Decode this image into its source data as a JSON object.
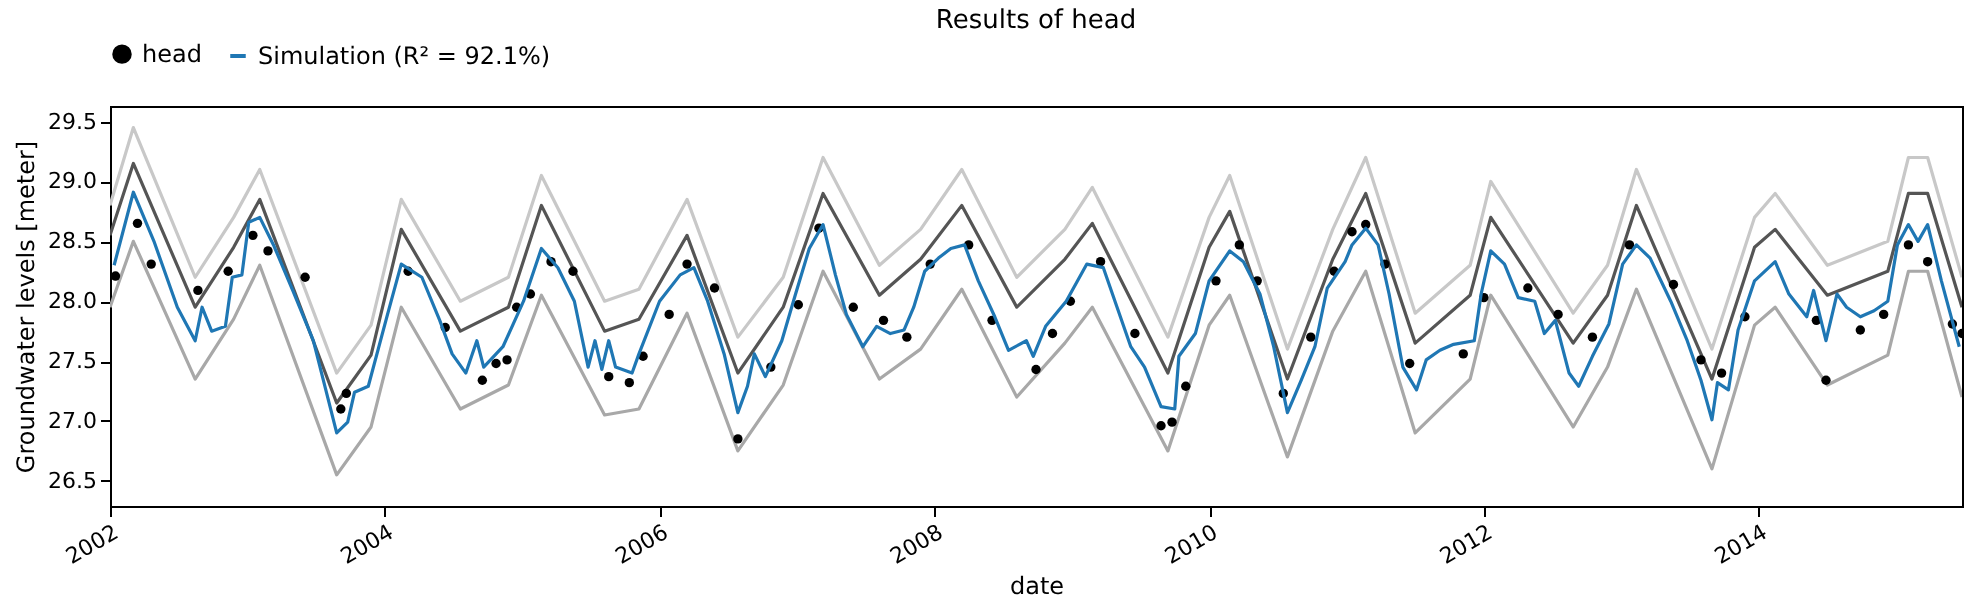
{
  "chart_data": {
    "type": "line",
    "title": "Results of head",
    "xlabel": "date",
    "ylabel": "Groundwater levels [meter]",
    "xlim": [
      2002,
      2015.48
    ],
    "xticks": [
      2002,
      2004,
      2006,
      2008,
      2010,
      2012,
      2014
    ],
    "ylim": [
      26.29,
      29.63
    ],
    "yticks": [
      26.5,
      {
        "value": 27,
        "label": "27.0"
      },
      27.5,
      {
        "value": 28,
        "label": "28.0"
      },
      28.5,
      {
        "value": 29,
        "label": "29.0"
      },
      29.5
    ],
    "legend": "top",
    "series": [
      {
        "color": "#c8c8c8",
        "x": [
          2002.0,
          2002.17,
          2002.62,
          2002.9,
          2003.09,
          2003.65,
          2003.9,
          2004.12,
          2004.55,
          2004.9,
          2005.14,
          2005.6,
          2005.85,
          2006.2,
          2006.57,
          2006.9,
          2007.19,
          2007.6,
          2007.9,
          2008.2,
          2008.6,
          2008.95,
          2009.15,
          2009.7,
          2010.0,
          2010.15,
          2010.57,
          2010.9,
          2011.14,
          2011.5,
          2011.9,
          2012.05,
          2012.65,
          2012.9,
          2013.11,
          2013.66,
          2013.97,
          2014.12,
          2014.5,
          2014.94,
          2015.09,
          2015.23,
          2015.48
        ],
        "values": [
          28.8,
          29.45,
          28.2,
          28.7,
          29.1,
          27.4,
          27.8,
          28.85,
          28.0,
          28.2,
          29.05,
          28.0,
          28.1,
          28.85,
          27.7,
          28.2,
          29.2,
          28.3,
          28.6,
          29.1,
          28.2,
          28.6,
          28.95,
          27.7,
          28.7,
          29.05,
          27.6,
          28.6,
          29.2,
          27.9,
          28.3,
          29.0,
          27.9,
          28.3,
          29.1,
          27.6,
          28.7,
          28.9,
          28.3,
          28.5,
          29.2,
          29.2,
          28.2
        ]
      },
      {
        "color": "#555555",
        "x": [
          2002.0,
          2002.17,
          2002.62,
          2002.9,
          2003.09,
          2003.65,
          2003.9,
          2004.12,
          2004.55,
          2004.9,
          2005.14,
          2005.6,
          2005.85,
          2006.2,
          2006.57,
          2006.9,
          2007.19,
          2007.6,
          2007.9,
          2008.2,
          2008.6,
          2008.95,
          2009.15,
          2009.7,
          2010.0,
          2010.15,
          2010.57,
          2010.9,
          2011.14,
          2011.5,
          2011.9,
          2012.05,
          2012.65,
          2012.9,
          2013.11,
          2013.66,
          2013.97,
          2014.12,
          2014.5,
          2014.94,
          2015.09,
          2015.23,
          2015.48
        ],
        "values": [
          28.55,
          29.15,
          27.95,
          28.45,
          28.85,
          27.15,
          27.55,
          28.6,
          27.75,
          27.95,
          28.8,
          27.75,
          27.85,
          28.55,
          27.4,
          27.95,
          28.9,
          28.05,
          28.35,
          28.8,
          27.95,
          28.35,
          28.65,
          27.4,
          28.45,
          28.75,
          27.35,
          28.35,
          28.9,
          27.65,
          28.05,
          28.7,
          27.65,
          28.05,
          28.8,
          27.35,
          28.45,
          28.6,
          28.05,
          28.25,
          28.9,
          28.9,
          27.95
        ]
      },
      {
        "color": "#a8a8a8",
        "x": [
          2002.0,
          2002.17,
          2002.62,
          2002.9,
          2003.09,
          2003.65,
          2003.9,
          2004.12,
          2004.55,
          2004.9,
          2005.14,
          2005.6,
          2005.85,
          2006.2,
          2006.57,
          2006.9,
          2007.19,
          2007.6,
          2007.9,
          2008.2,
          2008.6,
          2008.95,
          2009.15,
          2009.7,
          2010.0,
          2010.15,
          2010.57,
          2010.9,
          2011.14,
          2011.5,
          2011.9,
          2012.05,
          2012.65,
          2012.9,
          2013.11,
          2013.66,
          2013.97,
          2014.12,
          2014.5,
          2014.94,
          2015.09,
          2015.23,
          2015.48
        ],
        "values": [
          27.95,
          28.5,
          27.35,
          27.85,
          28.3,
          26.55,
          26.95,
          27.95,
          27.1,
          27.3,
          28.05,
          27.05,
          27.1,
          27.9,
          26.75,
          27.3,
          28.25,
          27.35,
          27.6,
          28.1,
          27.2,
          27.65,
          27.95,
          26.75,
          27.8,
          28.05,
          26.7,
          27.75,
          28.25,
          26.9,
          27.35,
          28.05,
          26.95,
          27.45,
          28.1,
          26.6,
          27.8,
          27.95,
          27.3,
          27.55,
          28.25,
          28.25,
          27.2
        ]
      },
      {
        "name": "head",
        "type": "scatter",
        "color": "#000000",
        "x": [
          2002.04,
          2002.2,
          2002.3,
          2002.64,
          2002.86,
          2003.04,
          2003.15,
          2003.42,
          2003.68,
          2003.72,
          2004.17,
          2004.44,
          2004.71,
          2004.81,
          2004.89,
          2004.96,
          2005.06,
          2005.21,
          2005.37,
          2005.63,
          2005.78,
          2005.88,
          2006.07,
          2006.2,
          2006.4,
          2006.57,
          2006.81,
          2007.01,
          2007.16,
          2007.41,
          2007.63,
          2007.8,
          2007.97,
          2008.25,
          2008.42,
          2008.74,
          2008.86,
          2008.99,
          2009.21,
          2009.46,
          2009.65,
          2009.73,
          2009.83,
          2010.05,
          2010.22,
          2010.35,
          2010.54,
          2010.74,
          2010.91,
          2011.04,
          2011.14,
          2011.28,
          2011.46,
          2011.85,
          2012.0,
          2012.32,
          2012.54,
          2012.79,
          2013.06,
          2013.38,
          2013.58,
          2013.73,
          2013.9,
          2014.42,
          2014.49,
          2014.74,
          2014.91,
          2015.09,
          2015.23,
          2015.41,
          2015.48
        ],
        "values": [
          28.21,
          28.65,
          28.31,
          28.09,
          28.25,
          28.55,
          28.42,
          28.2,
          27.1,
          27.23,
          28.25,
          27.78,
          27.34,
          27.48,
          27.51,
          27.95,
          28.06,
          28.33,
          28.25,
          27.37,
          27.32,
          27.54,
          27.89,
          28.31,
          28.11,
          26.85,
          27.45,
          27.97,
          28.61,
          27.95,
          27.84,
          27.7,
          28.31,
          28.47,
          27.84,
          27.43,
          27.73,
          28.0,
          28.33,
          27.73,
          26.96,
          26.99,
          27.29,
          28.17,
          28.47,
          28.17,
          27.23,
          27.7,
          28.25,
          28.58,
          28.64,
          28.31,
          27.48,
          27.56,
          28.03,
          28.11,
          27.89,
          27.7,
          28.47,
          28.14,
          27.51,
          27.4,
          27.87,
          27.84,
          27.34,
          27.76,
          27.89,
          28.47,
          28.33,
          27.81,
          27.73
        ]
      },
      {
        "name": "Simulation (R² = 92.1%)",
        "color": "#1f77b4",
        "x": [
          2002.03,
          2002.17,
          2002.32,
          2002.49,
          2002.62,
          2002.67,
          2002.74,
          2002.84,
          2002.89,
          2002.96,
          2003.01,
          2003.09,
          2003.19,
          2003.33,
          2003.48,
          2003.65,
          2003.73,
          2003.78,
          2003.88,
          2004.02,
          2004.12,
          2004.27,
          2004.4,
          2004.49,
          2004.59,
          2004.67,
          2004.72,
          2004.86,
          2005.01,
          2005.14,
          2005.26,
          2005.38,
          2005.48,
          2005.53,
          2005.58,
          2005.63,
          2005.68,
          2005.8,
          2005.85,
          2006.0,
          2006.15,
          2006.25,
          2006.35,
          2006.47,
          2006.57,
          2006.64,
          2006.69,
          2006.77,
          2006.89,
          2006.99,
          2007.09,
          2007.19,
          2007.28,
          2007.36,
          2007.48,
          2007.58,
          2007.68,
          2007.78,
          2007.85,
          2007.93,
          2008.03,
          2008.12,
          2008.22,
          2008.32,
          2008.44,
          2008.54,
          2008.67,
          2008.72,
          2008.81,
          2008.96,
          2009.11,
          2009.23,
          2009.33,
          2009.43,
          2009.53,
          2009.65,
          2009.75,
          2009.78,
          2009.9,
          2010.0,
          2010.15,
          2010.25,
          2010.37,
          2010.47,
          2010.57,
          2010.67,
          2010.77,
          2010.86,
          2010.99,
          2011.04,
          2011.14,
          2011.23,
          2011.31,
          2011.41,
          2011.51,
          2011.58,
          2011.68,
          2011.78,
          2011.93,
          2011.98,
          2012.05,
          2012.15,
          2012.25,
          2012.37,
          2012.44,
          2012.52,
          2012.62,
          2012.69,
          2012.79,
          2012.91,
          2013.01,
          2013.11,
          2013.21,
          2013.36,
          2013.48,
          2013.58,
          2013.66,
          2013.7,
          2013.78,
          2013.85,
          2013.97,
          2014.12,
          2014.22,
          2014.35,
          2014.4,
          2014.49,
          2014.57,
          2014.64,
          2014.74,
          2014.84,
          2014.94,
          2015.01,
          2015.09,
          2015.16,
          2015.23,
          2015.33,
          2015.46
        ],
        "values": [
          28.3,
          28.91,
          28.5,
          27.95,
          27.67,
          27.95,
          27.75,
          27.79,
          28.2,
          28.22,
          28.66,
          28.7,
          28.47,
          28.09,
          27.67,
          26.9,
          26.99,
          27.24,
          27.29,
          27.89,
          28.31,
          28.2,
          27.84,
          27.56,
          27.4,
          27.67,
          27.45,
          27.62,
          28.0,
          28.44,
          28.28,
          28.0,
          27.45,
          27.67,
          27.43,
          27.67,
          27.45,
          27.4,
          27.56,
          28.0,
          28.22,
          28.28,
          28.0,
          27.56,
          27.07,
          27.29,
          27.56,
          27.37,
          27.67,
          28.06,
          28.44,
          28.64,
          28.22,
          27.89,
          27.62,
          27.79,
          27.73,
          27.76,
          27.95,
          28.25,
          28.36,
          28.44,
          28.47,
          28.17,
          27.87,
          27.59,
          27.67,
          27.54,
          27.79,
          28.0,
          28.31,
          28.28,
          27.95,
          27.62,
          27.45,
          27.12,
          27.1,
          27.54,
          27.73,
          28.17,
          28.42,
          28.33,
          28.06,
          27.62,
          27.07,
          27.34,
          27.62,
          28.11,
          28.33,
          28.47,
          28.61,
          28.47,
          28.06,
          27.45,
          27.26,
          27.51,
          27.59,
          27.64,
          27.67,
          28.06,
          28.42,
          28.31,
          28.03,
          28.0,
          27.73,
          27.84,
          27.4,
          27.29,
          27.54,
          27.81,
          28.31,
          28.47,
          28.36,
          28.0,
          27.67,
          27.34,
          27.01,
          27.32,
          27.26,
          27.76,
          28.17,
          28.33,
          28.06,
          27.87,
          28.09,
          27.67,
          28.06,
          27.95,
          27.87,
          27.92,
          28.0,
          28.47,
          28.64,
          28.5,
          28.64,
          28.17,
          27.62
        ]
      }
    ]
  }
}
